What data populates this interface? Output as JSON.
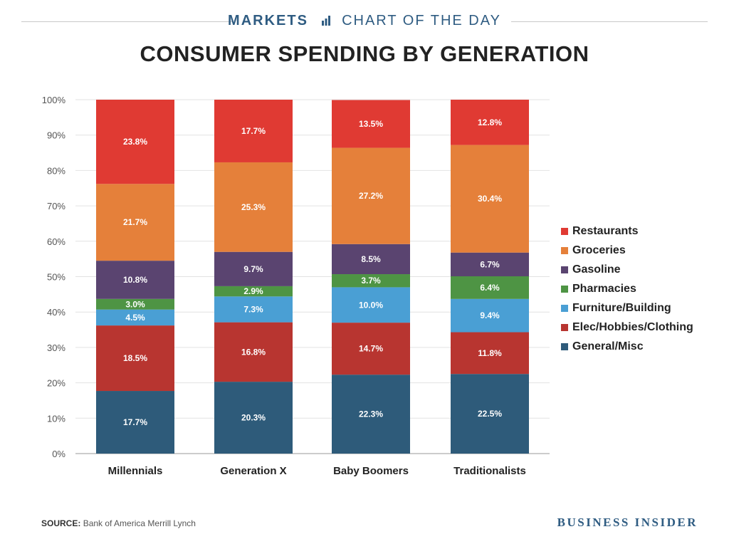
{
  "header": {
    "kicker_left": "MARKETS",
    "kicker_right": "CHART OF THE DAY"
  },
  "chart_data": {
    "type": "bar",
    "stacked": true,
    "title": "CONSUMER SPENDING BY GENERATION",
    "categories": [
      "Millennials",
      "Generation X",
      "Baby Boomers",
      "Traditionalists"
    ],
    "y_ticks": [
      "0%",
      "10%",
      "20%",
      "30%",
      "40%",
      "50%",
      "60%",
      "70%",
      "80%",
      "90%",
      "100%"
    ],
    "ylim": [
      0,
      100
    ],
    "grid": true,
    "legend_position": "right",
    "series": [
      {
        "name": "General/Misc",
        "color": "#2e5b7a",
        "values": [
          17.7,
          20.3,
          22.3,
          22.5
        ],
        "labels": [
          "17.7%",
          "20.3%",
          "22.3%",
          "22.5%"
        ]
      },
      {
        "name": "Elec/Hobbies/Clothing",
        "color": "#b83530",
        "values": [
          18.5,
          16.8,
          14.7,
          11.8
        ],
        "labels": [
          "18.5%",
          "16.8%",
          "14.7%",
          "11.8%"
        ]
      },
      {
        "name": "Furniture/Building",
        "color": "#4a9fd4",
        "values": [
          4.5,
          7.3,
          10.0,
          9.4
        ],
        "labels": [
          "4.5%",
          "7.3%",
          "10.0%",
          "9.4%"
        ]
      },
      {
        "name": "Pharmacies",
        "color": "#4e9444",
        "values": [
          3.0,
          2.9,
          3.7,
          6.4
        ],
        "labels": [
          "3.0%",
          "2.9%",
          "3.7%",
          "6.4%"
        ]
      },
      {
        "name": "Gasoline",
        "color": "#5a4470",
        "values": [
          10.8,
          9.7,
          8.5,
          6.7
        ],
        "labels": [
          "10.8%",
          "9.7%",
          "8.5%",
          "6.7%"
        ]
      },
      {
        "name": "Groceries",
        "color": "#e5803a",
        "values": [
          21.7,
          25.3,
          27.2,
          30.4
        ],
        "labels": [
          "21.7%",
          "25.3%",
          "27.2%",
          "30.4%"
        ]
      },
      {
        "name": "Restaurants",
        "color": "#e03a33",
        "values": [
          23.8,
          17.7,
          13.5,
          12.8
        ],
        "labels": [
          "23.8%",
          "17.7%",
          "13.5%",
          "12.8%"
        ]
      }
    ],
    "legend_order": [
      "Restaurants",
      "Groceries",
      "Gasoline",
      "Pharmacies",
      "Furniture/Building",
      "Elec/Hobbies/Clothing",
      "General/Misc"
    ]
  },
  "footer": {
    "source_label": "SOURCE:",
    "source_text": "Bank of America Merrill Lynch",
    "brand": "BUSINESS INSIDER"
  }
}
